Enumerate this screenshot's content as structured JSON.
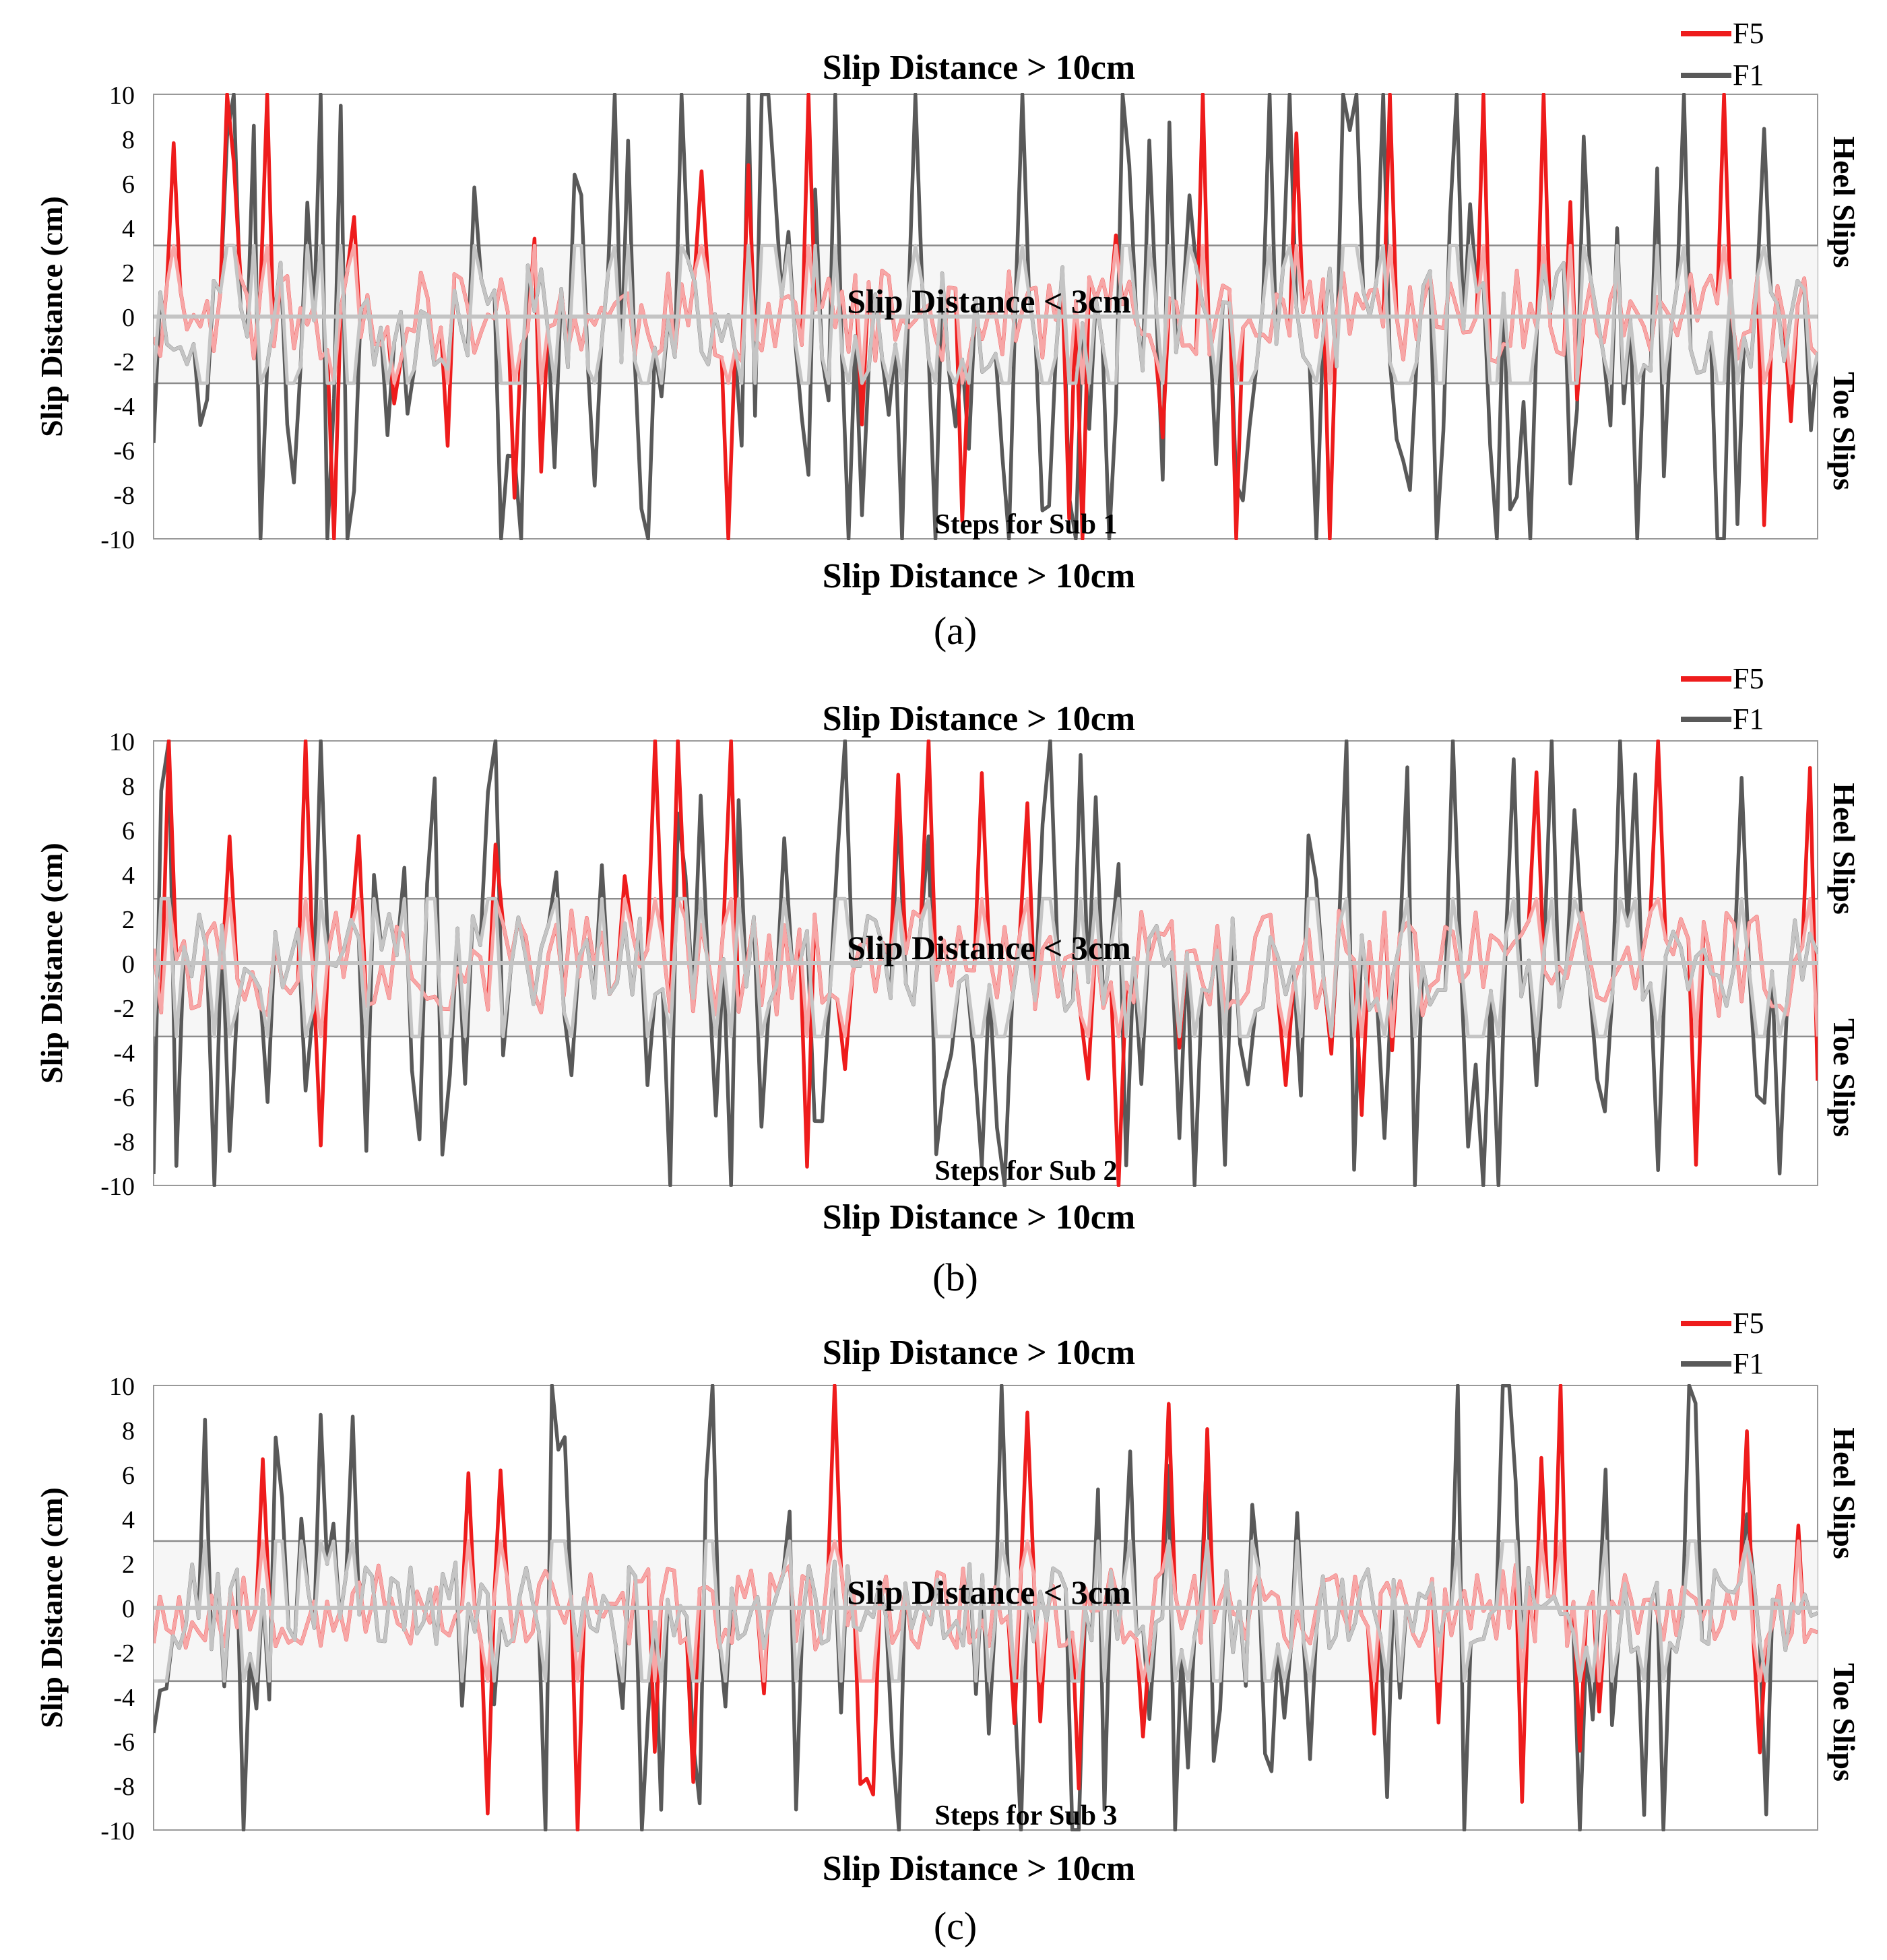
{
  "colors": {
    "f5": "#ee1c1c",
    "f5_faded": "#f7a6a6",
    "f1": "#595959",
    "f1_faded": "#c4c4c4",
    "band": "#f6f6f6",
    "frame": "#999999"
  },
  "chart_data": [
    {
      "type": "line",
      "panel_label": "(a)",
      "top_label": "Slip Distance > 10cm",
      "bottom_label": "Slip Distance > 10cm",
      "band_label": "Slip Distance < 3cm",
      "xlabel": "Steps for Sub 1",
      "ylabel": "Slip Distance (cm)",
      "right_top_label": "Heel Slips",
      "right_bottom_label": "Toe Slips",
      "ylim": [
        -10,
        10
      ],
      "yticks": [
        "10",
        "8",
        "6",
        "4",
        "2",
        "0",
        "-2",
        "-4",
        "-6",
        "-8",
        "-10"
      ],
      "band": [
        -3,
        3.2
      ],
      "legend": [
        "F5",
        "F1"
      ],
      "series": [
        {
          "name": "F5",
          "seed": 11,
          "steps": 250,
          "spike_prob": 0.14,
          "limit_prob": 0.05,
          "small_amp": 1.3
        },
        {
          "name": "F1",
          "seed": 23,
          "steps": 250,
          "spike_prob": 0.34,
          "limit_prob": 0.12,
          "small_amp": 1.6
        }
      ]
    },
    {
      "type": "line",
      "panel_label": "(b)",
      "top_label": "Slip Distance > 10cm",
      "bottom_label": "Slip Distance > 10cm",
      "band_label": "Slip Distance < 3cm",
      "xlabel": "Steps for Sub 2",
      "ylabel": "Slip Distance (cm)",
      "right_top_label": "Heel Slips",
      "right_bottom_label": "Toe Slips",
      "ylim": [
        -10,
        10
      ],
      "yticks": [
        "10",
        "8",
        "6",
        "4",
        "2",
        "0",
        "-2",
        "-4",
        "-6",
        "-8",
        "-10"
      ],
      "band": [
        -3.3,
        2.9
      ],
      "legend": [
        "F5",
        "F1"
      ],
      "series": [
        {
          "name": "F5",
          "seed": 37,
          "steps": 220,
          "spike_prob": 0.1,
          "limit_prob": 0.05,
          "small_amp": 1.5
        },
        {
          "name": "F1",
          "seed": 41,
          "steps": 220,
          "spike_prob": 0.3,
          "limit_prob": 0.1,
          "small_amp": 1.4
        }
      ]
    },
    {
      "type": "line",
      "panel_label": "(c)",
      "top_label": "Slip Distance > 10cm",
      "bottom_label": "Slip Distance > 10cm",
      "band_label": "Slip Distance < 3cm",
      "xlabel": "Steps for Sub 3",
      "ylabel": "Slip Distance (cm)",
      "right_top_label": "Heel Slips",
      "right_bottom_label": "Toe Slips",
      "ylim": [
        -10,
        10
      ],
      "yticks": [
        "10",
        "8",
        "6",
        "4",
        "2",
        "0",
        "-2",
        "-4",
        "-6",
        "-8",
        "-10"
      ],
      "band": [
        -3.3,
        3.0
      ],
      "legend": [
        "F5",
        "F1"
      ],
      "series": [
        {
          "name": "F5",
          "seed": 53,
          "steps": 260,
          "spike_prob": 0.08,
          "limit_prob": 0.02,
          "small_amp": 1.2
        },
        {
          "name": "F1",
          "seed": 67,
          "steps": 260,
          "spike_prob": 0.24,
          "limit_prob": 0.05,
          "small_amp": 1.3
        }
      ]
    }
  ]
}
